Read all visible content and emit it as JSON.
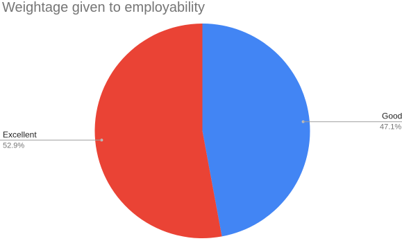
{
  "chart_data": {
    "type": "pie",
    "title": "Weightage given to employability",
    "categories": [
      "Good",
      "Excellent"
    ],
    "values": [
      47.1,
      52.9
    ],
    "value_labels": [
      "47.1%",
      "52.9%"
    ],
    "colors": [
      "#4285f4",
      "#ea4335"
    ],
    "legend": "none",
    "label_placement": "outside-with-leader-lines"
  }
}
